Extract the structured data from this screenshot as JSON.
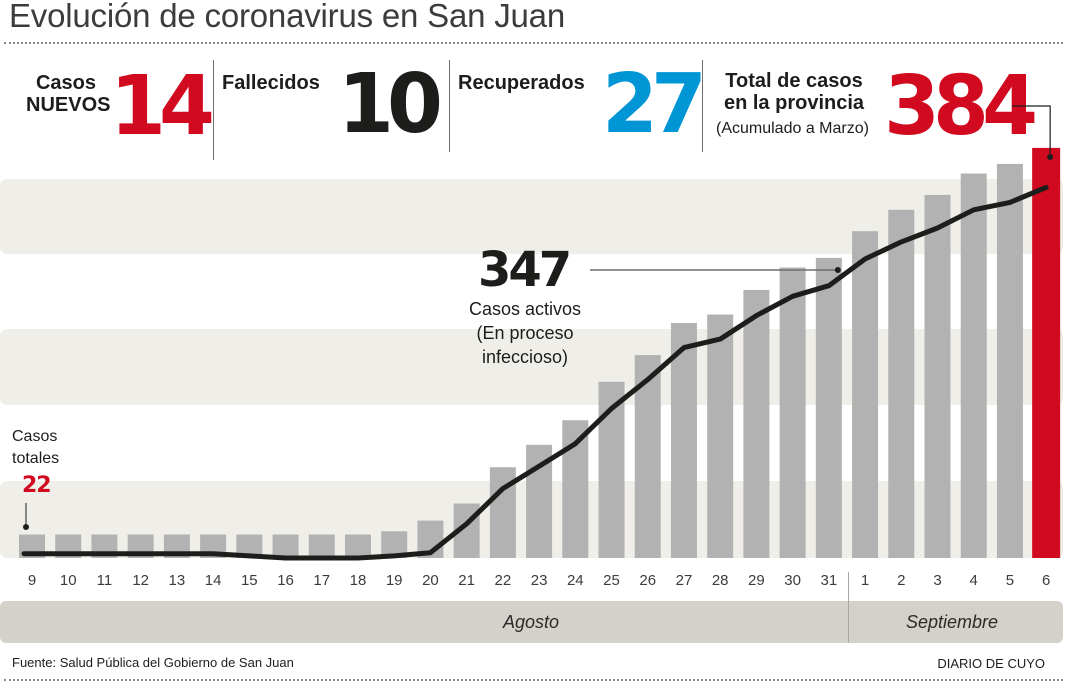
{
  "header": {
    "title": "Evolución de coronavirus en San Juan"
  },
  "kpis": {
    "new_cases": {
      "label_line1": "Casos",
      "label_line2": "NUEVOS",
      "value": "14",
      "color": "#d20a20"
    },
    "deaths": {
      "label": "Fallecidos",
      "value": "10",
      "color": "#1d1d1b"
    },
    "recovered": {
      "label": "Recuperados",
      "value": "27",
      "color": "#0096d6"
    },
    "total": {
      "label_line1": "Total de casos",
      "label_line2": "en la provincia",
      "sub": "(Acumulado a Marzo)",
      "value": "384",
      "color": "#d20a20"
    }
  },
  "annotations": {
    "active": {
      "value": "347",
      "line1": "Casos activos",
      "line2": "(En proceso",
      "line3": "infeccioso)"
    },
    "start": {
      "line1": "Casos",
      "line2": "totales",
      "value": "22"
    }
  },
  "months": {
    "august": "Agosto",
    "september": "Septiembre"
  },
  "footer": {
    "source": "Fuente: Salud Pública del Gobierno de San Juan",
    "brand": "DIARIO DE CUYO"
  },
  "chart_data": {
    "type": "bar",
    "title": "Evolución de coronavirus en San Juan",
    "xlabel": "",
    "ylabel": "",
    "categories": [
      "9",
      "10",
      "11",
      "12",
      "13",
      "14",
      "15",
      "16",
      "17",
      "18",
      "19",
      "20",
      "21",
      "22",
      "23",
      "24",
      "25",
      "26",
      "27",
      "28",
      "29",
      "30",
      "31",
      "1",
      "2",
      "3",
      "4",
      "5",
      "6"
    ],
    "month_groups": [
      {
        "name": "Agosto",
        "from": "9",
        "to": "31"
      },
      {
        "name": "Septiembre",
        "from": "1",
        "to": "6"
      }
    ],
    "series": [
      {
        "name": "Casos totales",
        "type": "bar",
        "color": "#b3b2b2",
        "highlight_last_color": "#d20a20",
        "values": [
          22,
          22,
          22,
          22,
          22,
          22,
          22,
          22,
          22,
          22,
          25,
          35,
          51,
          85,
          106,
          129,
          165,
          190,
          220,
          228,
          251,
          272,
          281,
          306,
          326,
          340,
          360,
          369,
          384
        ]
      },
      {
        "name": "Casos activos",
        "type": "line",
        "color": "#1d1d1b",
        "values": [
          4,
          4,
          4,
          4,
          4,
          4,
          2,
          0,
          0,
          0,
          2,
          5,
          32,
          65,
          86,
          107,
          140,
          167,
          197,
          205,
          227,
          245,
          255,
          280,
          296,
          309,
          326,
          333,
          347
        ]
      }
    ],
    "ylim": [
      0,
      390
    ],
    "grid": "horizontal-bands",
    "legend": "none"
  }
}
